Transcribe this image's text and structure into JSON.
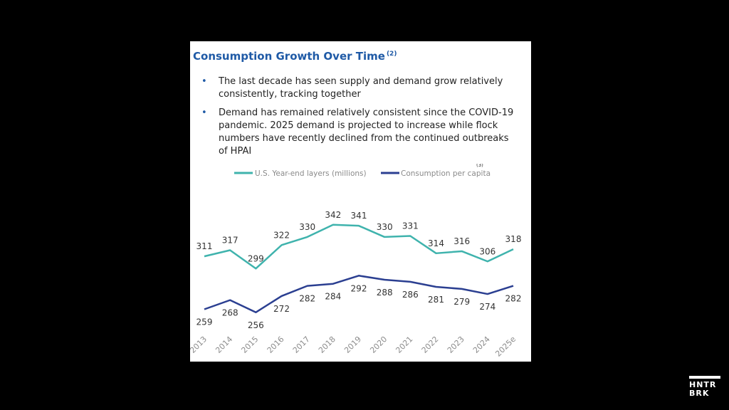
{
  "slide": {
    "title": "Consumption Growth Over Time",
    "title_note": "(2)",
    "bullets": [
      "The last decade has seen supply and demand grow relatively consistently, tracking together",
      "Demand has remained relatively consistent since the COVID-19 pandemic. 2025 demand is projected to increase while flock numbers have recently declined from the continued outbreaks of HPAI"
    ],
    "bullet_marker": "•"
  },
  "chart_data": {
    "type": "line",
    "title": "",
    "xlabel": "",
    "ylabel": "",
    "categories": [
      "2013",
      "2014",
      "2015",
      "2016",
      "2017",
      "2018",
      "2019",
      "2020",
      "2021",
      "2022",
      "2023",
      "2024",
      "2025e"
    ],
    "series": [
      {
        "name": "U.S. Year-end layers (millions)",
        "color": "#3fb3ad",
        "values": [
          311,
          317,
          299,
          322,
          330,
          342,
          341,
          330,
          331,
          314,
          316,
          306,
          318
        ]
      },
      {
        "name": "Consumption per capita",
        "name_note": "(3)",
        "color": "#2b3f91",
        "values": [
          259,
          268,
          256,
          272,
          282,
          284,
          292,
          288,
          286,
          281,
          279,
          274,
          282
        ]
      }
    ],
    "ylim": [
      230,
      360
    ],
    "grid": false,
    "legend": "top",
    "data_labels": true,
    "tick_label_rotation": -45
  },
  "branding": {
    "logo_line1": "HNTR",
    "logo_line2": "BRK"
  }
}
